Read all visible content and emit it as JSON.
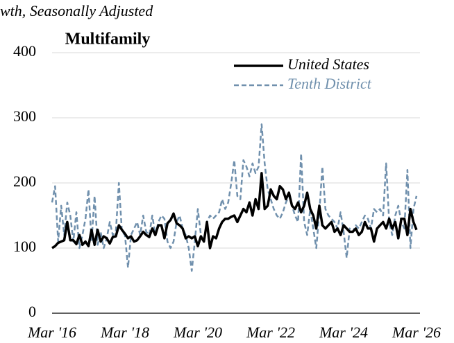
{
  "chart_data": {
    "type": "line",
    "subtitle": "wth, Seasonally Adjusted",
    "title": "Multifamily",
    "categories": [
      "Mar '16",
      null,
      null,
      null,
      null,
      null,
      null,
      null,
      null,
      null,
      null,
      null,
      null,
      null,
      null,
      null,
      null,
      null,
      null,
      null,
      null,
      null,
      null,
      null,
      "Mar '18",
      null,
      null,
      null,
      null,
      null,
      null,
      null,
      null,
      null,
      null,
      null,
      null,
      null,
      null,
      null,
      null,
      null,
      null,
      null,
      null,
      null,
      null,
      null,
      "Mar '20",
      null,
      null,
      null,
      null,
      null,
      null,
      null,
      null,
      null,
      null,
      null,
      null,
      null,
      null,
      null,
      null,
      null,
      null,
      null,
      null,
      null,
      null,
      null,
      "Mar '22",
      null,
      null,
      null,
      null,
      null,
      null,
      null,
      null,
      null,
      null,
      null,
      null,
      null,
      null,
      null,
      null,
      null,
      null,
      null,
      null,
      null,
      null,
      null,
      "Mar '24",
      null,
      null,
      null,
      null,
      null,
      null,
      null,
      null,
      null,
      null,
      null,
      null,
      null,
      null,
      null,
      null,
      null,
      null,
      null,
      null,
      null,
      null,
      null,
      "Mar '26"
    ],
    "series": [
      {
        "name": "United States",
        "color": "#000000",
        "dash": false,
        "values": [
          100,
          103,
          108,
          110,
          112,
          140,
          112,
          112,
          106,
          120,
          105,
          110,
          103,
          128,
          105,
          128,
          110,
          118,
          115,
          107,
          117,
          118,
          135,
          128,
          122,
          115,
          118,
          110,
          112,
          118,
          125,
          120,
          117,
          130,
          120,
          135,
          135,
          115,
          138,
          143,
          153,
          138,
          135,
          130,
          115,
          118,
          115,
          118,
          103,
          118,
          110,
          140,
          100,
          118,
          115,
          130,
          140,
          145,
          145,
          148,
          150,
          140,
          150,
          160,
          155,
          170,
          150,
          175,
          160,
          215,
          160,
          165,
          190,
          180,
          175,
          195,
          190,
          175,
          185,
          165,
          160,
          170,
          155,
          165,
          185,
          160,
          150,
          130,
          165,
          135,
          130,
          135,
          140,
          125,
          130,
          120,
          135,
          130,
          125,
          125,
          130,
          120,
          125,
          140,
          130,
          130,
          110,
          130,
          135,
          140,
          130,
          145,
          130,
          140,
          115,
          145,
          145,
          120,
          160,
          140,
          128
        ]
      },
      {
        "name": "Tenth District",
        "color": "#7090ad",
        "dash": true,
        "values": [
          170,
          195,
          110,
          165,
          120,
          170,
          150,
          110,
          155,
          100,
          120,
          145,
          190,
          110,
          180,
          105,
          125,
          100,
          115,
          140,
          120,
          125,
          200,
          125,
          120,
          70,
          120,
          130,
          140,
          120,
          150,
          125,
          120,
          150,
          120,
          140,
          150,
          145,
          110,
          100,
          110,
          140,
          150,
          130,
          120,
          100,
          65,
          110,
          160,
          120,
          110,
          140,
          150,
          145,
          150,
          155,
          175,
          160,
          170,
          200,
          235,
          180,
          175,
          235,
          225,
          210,
          230,
          215,
          225,
          290,
          230,
          190,
          175,
          160,
          150,
          145,
          155,
          170,
          180,
          165,
          150,
          140,
          245,
          140,
          120,
          160,
          130,
          100,
          155,
          225,
          160,
          150,
          145,
          140,
          130,
          155,
          125,
          85,
          130,
          125,
          135,
          130,
          140,
          150,
          145,
          130,
          160,
          155,
          160,
          150,
          230,
          140,
          120,
          150,
          165,
          140,
          130,
          220,
          100,
          160,
          180
        ]
      }
    ],
    "ylim": [
      0,
      400
    ],
    "yticks": [
      0,
      100,
      200,
      300,
      400
    ],
    "grid": true,
    "legend": "top-right"
  }
}
